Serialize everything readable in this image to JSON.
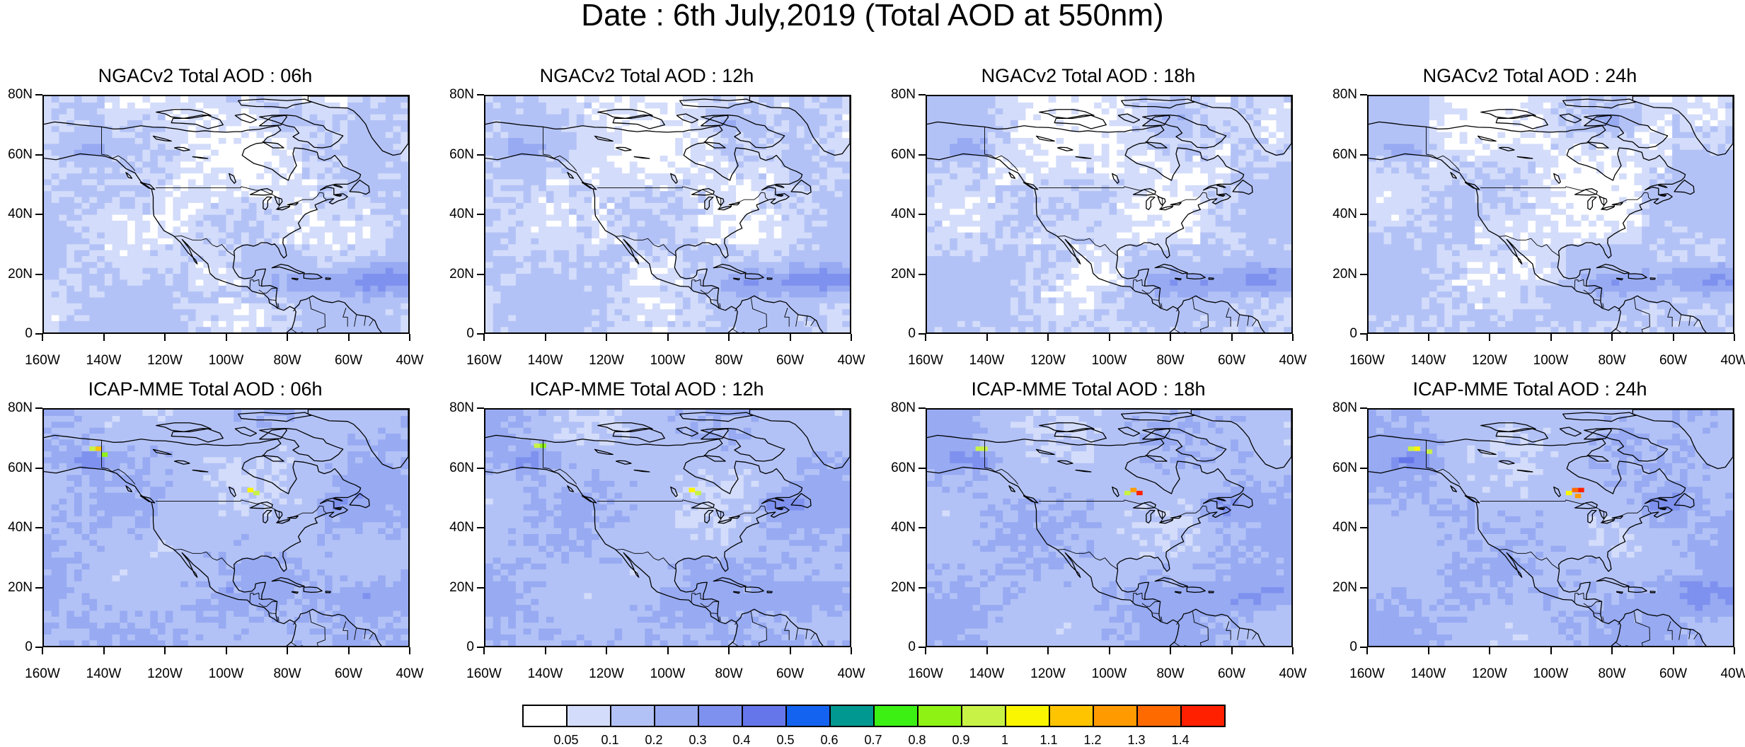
{
  "figure": {
    "title": "Date : 6th July,2019 (Total AOD at 550nm)"
  },
  "axes": {
    "lat_labels": [
      "80N",
      "60N",
      "40N",
      "20N",
      "0"
    ],
    "lon_labels": [
      "160W",
      "140W",
      "120W",
      "100W",
      "80W",
      "60W",
      "40W"
    ]
  },
  "panels": [
    {
      "title": "NGACv2 Total AOD : 06h",
      "model": "ngac",
      "hour": 6
    },
    {
      "title": "NGACv2 Total AOD : 12h",
      "model": "ngac",
      "hour": 12
    },
    {
      "title": "NGACv2 Total AOD : 18h",
      "model": "ngac",
      "hour": 18
    },
    {
      "title": "NGACv2 Total AOD : 24h",
      "model": "ngac",
      "hour": 24
    },
    {
      "title": "ICAP-MME Total AOD : 06h",
      "model": "icap",
      "hour": 6
    },
    {
      "title": "ICAP-MME Total AOD : 12h",
      "model": "icap",
      "hour": 12
    },
    {
      "title": "ICAP-MME Total AOD : 18h",
      "model": "icap",
      "hour": 18
    },
    {
      "title": "ICAP-MME Total AOD : 24h",
      "model": "icap",
      "hour": 24
    }
  ],
  "colorbar": {
    "labels": [
      "0.05",
      "0.1",
      "0.2",
      "0.3",
      "0.4",
      "0.5",
      "0.6",
      "0.7",
      "0.8",
      "0.9",
      "1",
      "1.1",
      "1.2",
      "1.3",
      "1.4"
    ],
    "colors": [
      "#ffffff",
      "#d3dcfa",
      "#b3c2f6",
      "#97aaf2",
      "#7e91ee",
      "#6576ea",
      "#1463f0",
      "#009890",
      "#3cf014",
      "#8ef214",
      "#c8f246",
      "#faf500",
      "#ffc400",
      "#ff9a00",
      "#ff6a00",
      "#ff2000"
    ]
  }
}
